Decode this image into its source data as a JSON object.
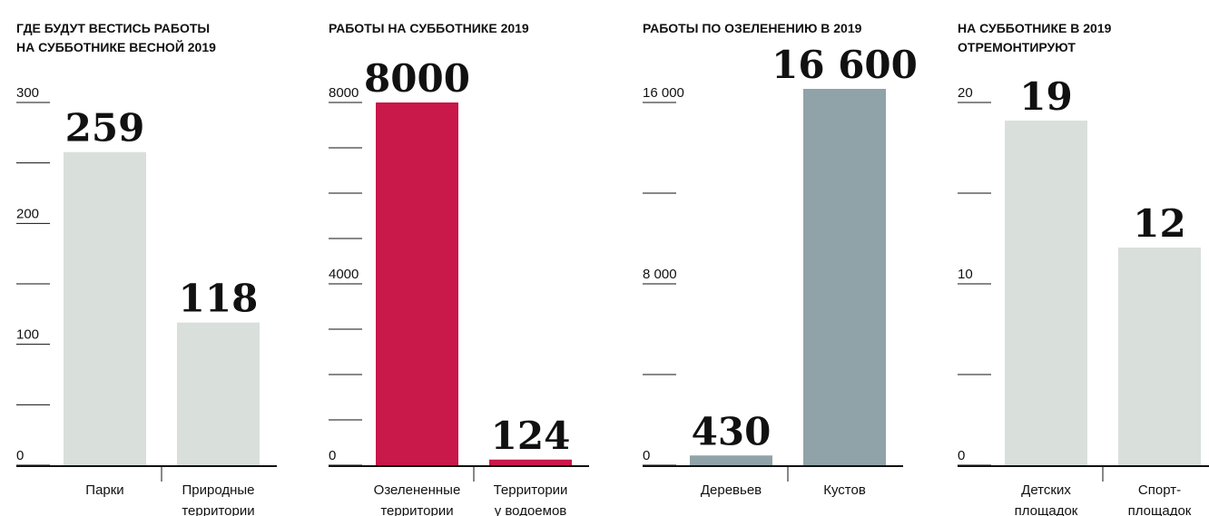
{
  "chart_data": [
    {
      "type": "bar",
      "title": [
        "ГДЕ БУДУТ ВЕСТИСЬ РАБОТЫ",
        "НА СУББОТНИКЕ ВЕСНОЙ 2019"
      ],
      "categories": [
        [
          "Парки"
        ],
        [
          "Природные",
          "территории"
        ]
      ],
      "values": [
        259,
        118
      ],
      "color": "#d9dfdb",
      "ylim": [
        0,
        300
      ],
      "yticks": [
        0,
        100,
        200,
        300
      ],
      "minor_yticks": [
        50,
        150,
        250
      ]
    },
    {
      "type": "bar",
      "title": [
        "РАБОТЫ НА СУББОТНИКЕ 2019"
      ],
      "categories": [
        [
          "Озелененные",
          "территории"
        ],
        [
          "Территории",
          "у водоемов"
        ]
      ],
      "values": [
        8000,
        124
      ],
      "color": "#c9184a",
      "ylim": [
        0,
        8000
      ],
      "yticks": [
        0,
        4000,
        8000
      ],
      "minor_yticks": [
        1000,
        2000,
        3000,
        5000,
        6000,
        7000
      ]
    },
    {
      "type": "bar",
      "title": [
        "РАБОТЫ ПО ОЗЕЛЕНЕНИЮ В 2019"
      ],
      "categories": [
        [
          "Деревьев"
        ],
        [
          "Кустов"
        ]
      ],
      "values": [
        430,
        16600
      ],
      "value_labels": [
        "430",
        "16 600"
      ],
      "color": "#8fa3a8",
      "ylim": [
        0,
        16000
      ],
      "yticks": [
        0,
        {
          "value": 8000,
          "label": "8 000"
        },
        {
          "value": 16000,
          "label": "16 000"
        }
      ],
      "minor_yticks": [
        4000,
        12000
      ]
    },
    {
      "type": "bar",
      "title": [
        "НА СУББОТНИКЕ В 2019",
        "ОТРЕМОНТИРУЮТ"
      ],
      "categories": [
        [
          "Детских",
          "площадок"
        ],
        [
          "Спорт-",
          "площадок"
        ]
      ],
      "values": [
        19,
        12
      ],
      "color": "#d9dfdb",
      "ylim": [
        0,
        20
      ],
      "yticks": [
        0,
        10,
        20
      ],
      "minor_yticks": [
        5,
        15
      ]
    }
  ]
}
